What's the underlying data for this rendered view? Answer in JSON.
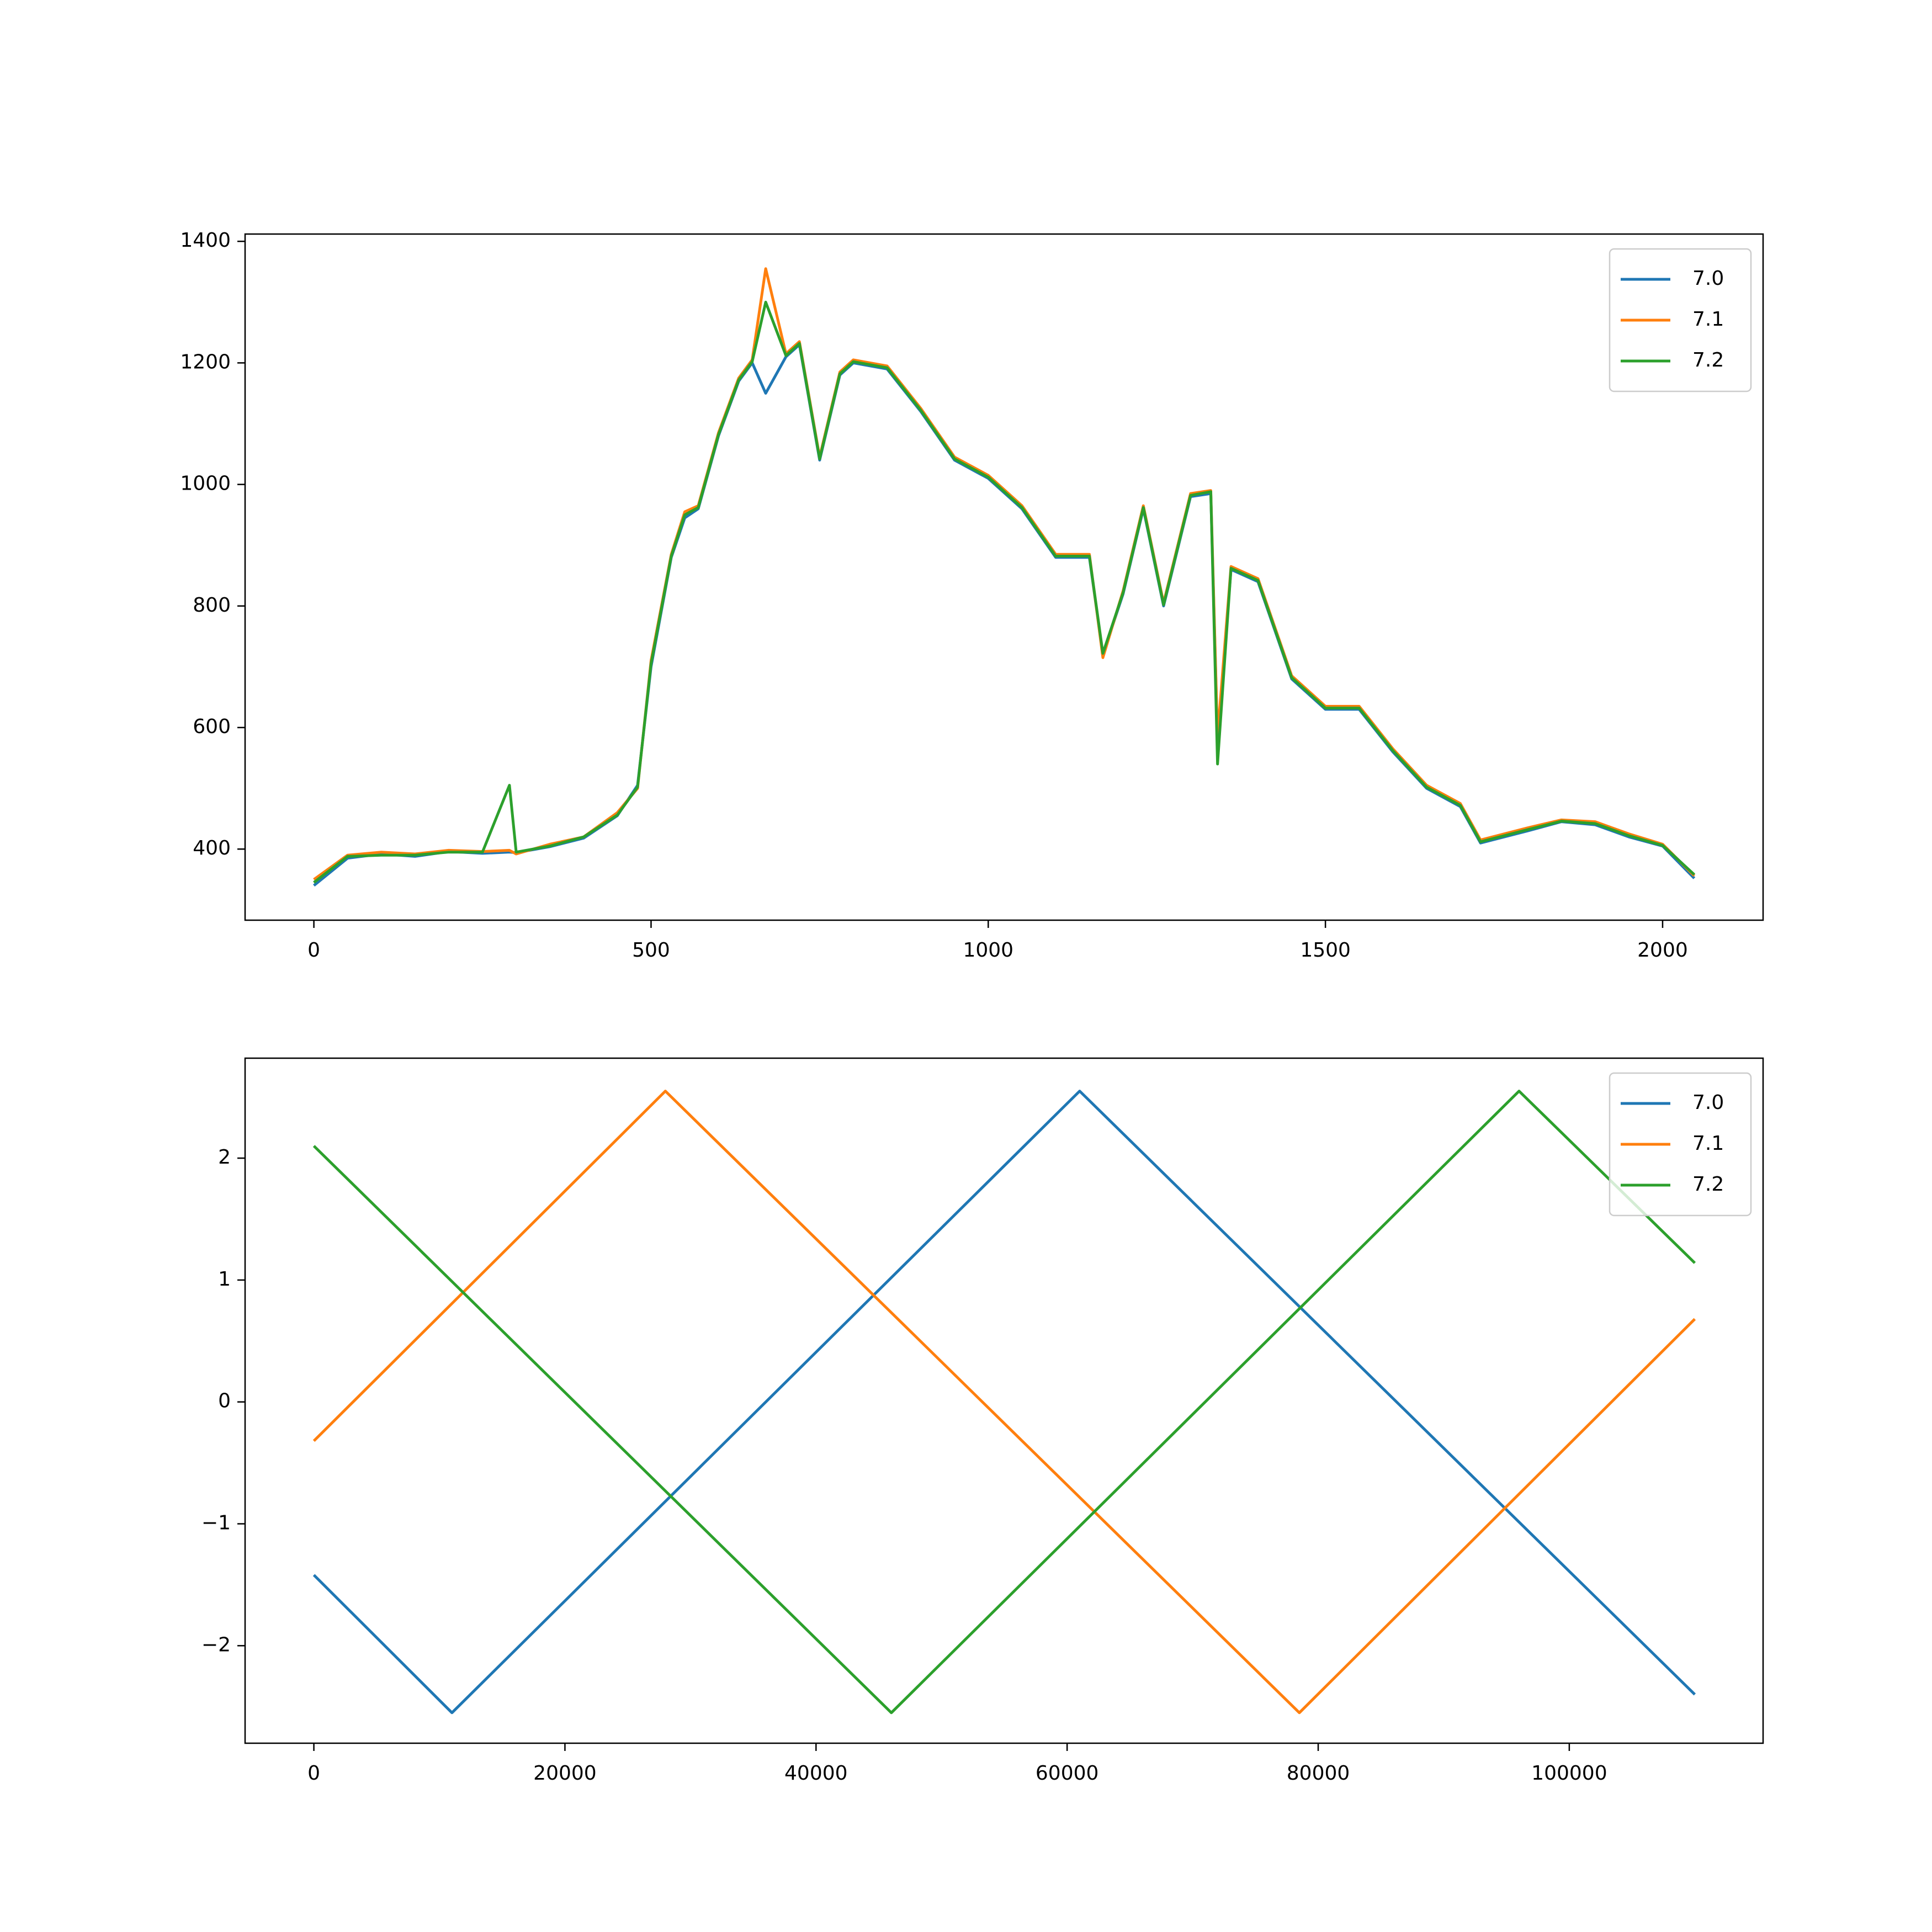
{
  "chart_data": [
    {
      "type": "line",
      "legend": "upper right",
      "grid": false,
      "x": [
        0,
        50,
        100,
        150,
        200,
        250,
        290,
        300,
        350,
        400,
        450,
        480,
        500,
        530,
        550,
        570,
        600,
        630,
        650,
        670,
        700,
        720,
        750,
        780,
        800,
        850,
        900,
        950,
        1000,
        1050,
        1100,
        1150,
        1170,
        1200,
        1230,
        1260,
        1300,
        1330,
        1340,
        1360,
        1400,
        1450,
        1500,
        1550,
        1600,
        1650,
        1700,
        1730,
        1800,
        1850,
        1900,
        1950,
        2000,
        2047
      ],
      "series": [
        {
          "name": "7.0",
          "color": "#1f77b4",
          "values": [
            340,
            385,
            392,
            388,
            396,
            393,
            395,
            394,
            404,
            418,
            455,
            505,
            700,
            880,
            945,
            960,
            1080,
            1170,
            1200,
            1150,
            1210,
            1230,
            1040,
            1180,
            1200,
            1190,
            1120,
            1040,
            1010,
            960,
            880,
            880,
            720,
            820,
            960,
            800,
            980,
            985,
            580,
            860,
            840,
            680,
            630,
            630,
            560,
            500,
            470,
            410,
            430,
            445,
            440,
            420,
            405,
            352
          ]
        },
        {
          "name": "7.1",
          "color": "#ff7f0e",
          "values": [
            350,
            390,
            395,
            392,
            398,
            396,
            398,
            392,
            408,
            420,
            460,
            500,
            710,
            885,
            955,
            965,
            1085,
            1175,
            1205,
            1355,
            1215,
            1235,
            1045,
            1185,
            1205,
            1195,
            1125,
            1045,
            1015,
            965,
            885,
            885,
            715,
            825,
            965,
            805,
            985,
            990,
            585,
            865,
            845,
            685,
            635,
            635,
            565,
            505,
            475,
            415,
            435,
            448,
            445,
            425,
            408,
            356
          ]
        },
        {
          "name": "7.2",
          "color": "#2ca02c",
          "values": [
            345,
            388,
            390,
            390,
            395,
            395,
            505,
            395,
            405,
            420,
            456,
            502,
            705,
            882,
            950,
            962,
            1082,
            1172,
            1202,
            1300,
            1212,
            1232,
            1042,
            1182,
            1202,
            1192,
            1122,
            1042,
            1012,
            962,
            882,
            882,
            722,
            822,
            962,
            802,
            982,
            988,
            540,
            862,
            842,
            682,
            632,
            632,
            562,
            502,
            472,
            412,
            432,
            446,
            442,
            422,
            406,
            358
          ]
        }
      ],
      "xlim": [
        -102,
        2149
      ],
      "ylim": [
        283,
        1412
      ],
      "xticks": [
        0,
        500,
        1000,
        1500,
        2000
      ],
      "yticks": [
        400,
        600,
        800,
        1000,
        1200,
        1400
      ]
    },
    {
      "type": "line",
      "legend": "upper right",
      "grid": false,
      "series": [
        {
          "name": "7.0",
          "color": "#1f77b4",
          "x": [
            0,
            11000,
            61000,
            110000
          ],
          "values": [
            -1.42,
            -2.55,
            2.55,
            -2.4
          ]
        },
        {
          "name": "7.1",
          "color": "#ff7f0e",
          "x": [
            0,
            28000,
            78500,
            110000
          ],
          "values": [
            -0.32,
            2.55,
            -2.55,
            0.68
          ]
        },
        {
          "name": "7.2",
          "color": "#2ca02c",
          "x": [
            0,
            46000,
            96000,
            110000
          ],
          "values": [
            2.1,
            -2.55,
            2.55,
            1.14
          ]
        }
      ],
      "xlim": [
        -5478,
        115438
      ],
      "ylim": [
        -2.8,
        2.82
      ],
      "xticks": [
        0,
        20000,
        40000,
        60000,
        80000,
        100000
      ],
      "yticks": [
        {
          "value": -2,
          "label": "−2"
        },
        {
          "value": -1,
          "label": "−1"
        },
        0,
        1,
        2
      ]
    }
  ]
}
